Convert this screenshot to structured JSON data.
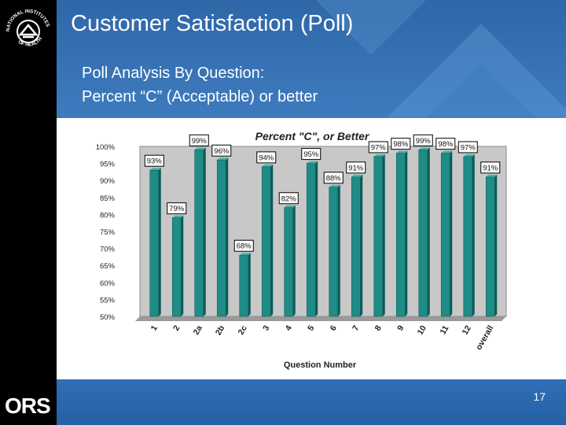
{
  "slide": {
    "title": "Customer Satisfaction (Poll)",
    "subtitle_line1": "Poll Analysis By Question:",
    "subtitle_line2": "Percent “C” (Acceptable) or better",
    "page_number": "17",
    "org_abbrev": "ORS",
    "logo_text": "NATIONAL INSTITUTES OF HEALTH"
  },
  "colors": {
    "bar": "#1f8c86",
    "bar_dark": "#0f5c58",
    "accent": "#3f7dc0"
  },
  "chart_data": {
    "type": "bar",
    "title": "Percent \"C\", or Better",
    "xlabel": "Question Number",
    "ylabel": "",
    "ylim": [
      50,
      100
    ],
    "yticks": [
      "50%",
      "55%",
      "60%",
      "65%",
      "70%",
      "75%",
      "80%",
      "85%",
      "90%",
      "95%",
      "100%"
    ],
    "categories": [
      "1",
      "2",
      "2a",
      "2b",
      "2c",
      "3",
      "4",
      "5",
      "6",
      "7",
      "8",
      "9",
      "10",
      "11",
      "12",
      "overall"
    ],
    "values": [
      93,
      79,
      99,
      96,
      68,
      94,
      82,
      95,
      88,
      91,
      97,
      98,
      99,
      98,
      97,
      91
    ],
    "labels": [
      "93%",
      "79%",
      "99%",
      "96%",
      "68%",
      "94%",
      "82%",
      "95%",
      "88%",
      "91%",
      "97%",
      "98%",
      "99%",
      "98%",
      "97%",
      "91%"
    ]
  }
}
